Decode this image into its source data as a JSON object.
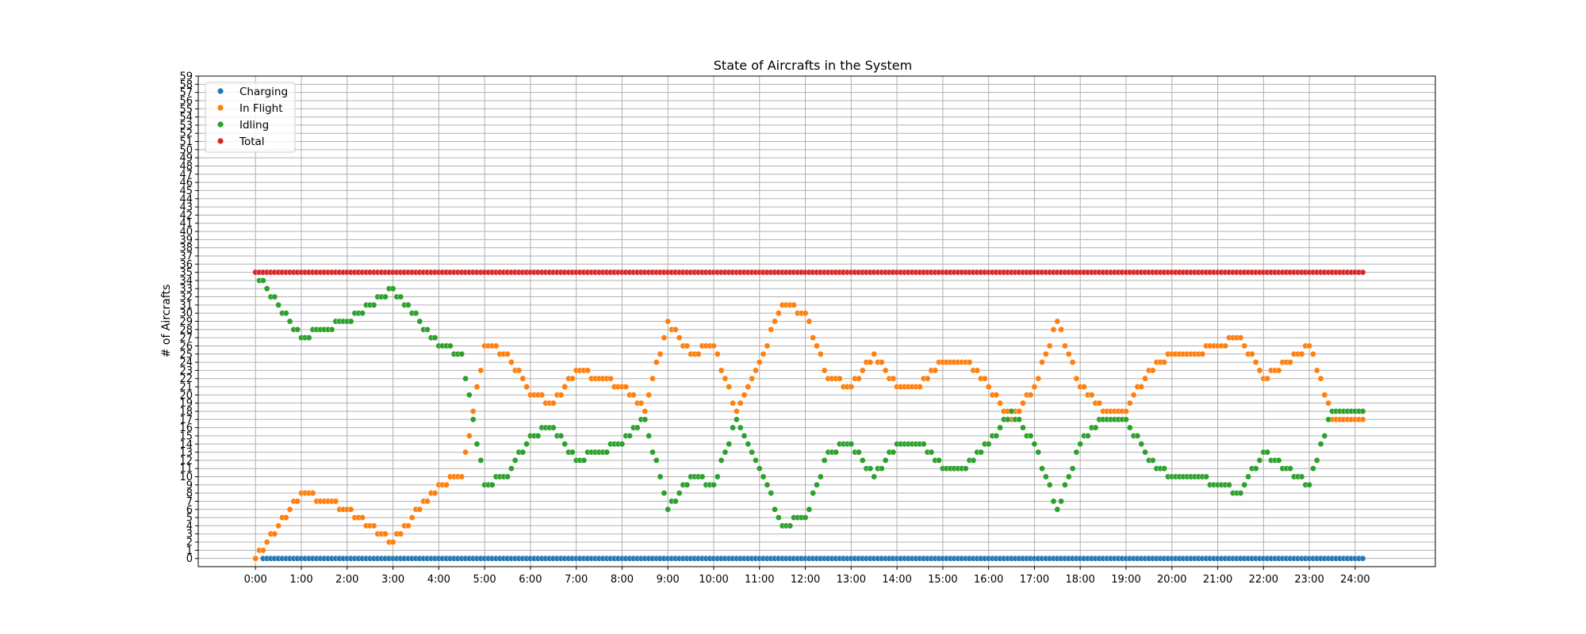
{
  "chart_data": {
    "type": "scatter",
    "title": "State of Aircrafts in the System",
    "xlabel": "",
    "ylabel": "# of Aircrafts",
    "x_unit": "minutes since 0:00",
    "xlim": [
      -75,
      1545
    ],
    "ylim": [
      -1,
      59
    ],
    "x_ticks": [
      0,
      60,
      120,
      180,
      240,
      300,
      360,
      420,
      480,
      540,
      600,
      660,
      720,
      780,
      840,
      900,
      960,
      1020,
      1080,
      1140,
      1200,
      1260,
      1320,
      1380,
      1440
    ],
    "x_tick_labels": [
      "0:00",
      "1:00",
      "2:00",
      "3:00",
      "4:00",
      "5:00",
      "6:00",
      "7:00",
      "8:00",
      "9:00",
      "10:00",
      "11:00",
      "12:00",
      "13:00",
      "14:00",
      "15:00",
      "16:00",
      "17:00",
      "18:00",
      "19:00",
      "20:00",
      "21:00",
      "22:00",
      "23:00",
      "24:00"
    ],
    "y_ticks": [
      0,
      1,
      2,
      3,
      4,
      5,
      6,
      7,
      8,
      9,
      10,
      11,
      12,
      13,
      14,
      15,
      16,
      17,
      18,
      19,
      20,
      21,
      22,
      23,
      24,
      25,
      26,
      27,
      28,
      29,
      30,
      31,
      32,
      33,
      34,
      35,
      36,
      37,
      38,
      39,
      40,
      41,
      42,
      43,
      44,
      45,
      46,
      47,
      48,
      49,
      50,
      51,
      52,
      53,
      54,
      55,
      56,
      57,
      58,
      59
    ],
    "grid": true,
    "legend_position": "top-left",
    "sample_interval_min": 5,
    "series": [
      {
        "name": "Charging",
        "color": "#1f77b4",
        "x_start": 10,
        "x_end": 1450,
        "values": [
          0
        ]
      },
      {
        "name": "In Flight",
        "color": "#ff7f0e",
        "x_start": 0,
        "x_end": 1450,
        "points": [
          [
            0,
            0
          ],
          [
            60,
            8
          ],
          [
            120,
            6
          ],
          [
            180,
            2
          ],
          [
            240,
            9
          ],
          [
            270,
            10
          ],
          [
            300,
            26
          ],
          [
            330,
            25
          ],
          [
            360,
            20
          ],
          [
            390,
            19
          ],
          [
            420,
            23
          ],
          [
            450,
            22
          ],
          [
            480,
            21
          ],
          [
            510,
            18
          ],
          [
            540,
            29
          ],
          [
            570,
            25
          ],
          [
            600,
            26
          ],
          [
            630,
            18
          ],
          [
            660,
            24
          ],
          [
            690,
            31
          ],
          [
            720,
            30
          ],
          [
            750,
            22
          ],
          [
            780,
            21
          ],
          [
            810,
            25
          ],
          [
            840,
            21
          ],
          [
            870,
            21
          ],
          [
            900,
            24
          ],
          [
            930,
            24
          ],
          [
            960,
            21
          ],
          [
            990,
            17
          ],
          [
            1020,
            21
          ],
          [
            1050,
            29
          ],
          [
            1080,
            21
          ],
          [
            1110,
            18
          ],
          [
            1140,
            18
          ],
          [
            1170,
            23
          ],
          [
            1200,
            25
          ],
          [
            1230,
            25
          ],
          [
            1260,
            26
          ],
          [
            1290,
            27
          ],
          [
            1320,
            22
          ],
          [
            1350,
            24
          ],
          [
            1380,
            26
          ],
          [
            1410,
            17
          ],
          [
            1450,
            17
          ]
        ]
      },
      {
        "name": "Idling",
        "color": "#2ca02c",
        "x_start": 0,
        "x_end": 1450,
        "points": [
          [
            0,
            35
          ],
          [
            60,
            27
          ],
          [
            120,
            29
          ],
          [
            180,
            33
          ],
          [
            240,
            26
          ],
          [
            270,
            25
          ],
          [
            300,
            9
          ],
          [
            330,
            10
          ],
          [
            360,
            15
          ],
          [
            390,
            16
          ],
          [
            420,
            12
          ],
          [
            450,
            13
          ],
          [
            480,
            14
          ],
          [
            510,
            17
          ],
          [
            540,
            6
          ],
          [
            570,
            10
          ],
          [
            600,
            9
          ],
          [
            630,
            17
          ],
          [
            660,
            11
          ],
          [
            690,
            4
          ],
          [
            720,
            5
          ],
          [
            750,
            13
          ],
          [
            780,
            14
          ],
          [
            810,
            10
          ],
          [
            840,
            14
          ],
          [
            870,
            14
          ],
          [
            900,
            11
          ],
          [
            930,
            11
          ],
          [
            960,
            14
          ],
          [
            990,
            18
          ],
          [
            1020,
            14
          ],
          [
            1050,
            6
          ],
          [
            1080,
            14
          ],
          [
            1110,
            17
          ],
          [
            1140,
            17
          ],
          [
            1170,
            12
          ],
          [
            1200,
            10
          ],
          [
            1230,
            10
          ],
          [
            1260,
            9
          ],
          [
            1290,
            8
          ],
          [
            1320,
            13
          ],
          [
            1350,
            11
          ],
          [
            1380,
            9
          ],
          [
            1410,
            18
          ],
          [
            1450,
            18
          ]
        ]
      },
      {
        "name": "Total",
        "color": "#d62728",
        "x_start": 0,
        "x_end": 1450,
        "values": [
          35
        ]
      }
    ]
  }
}
